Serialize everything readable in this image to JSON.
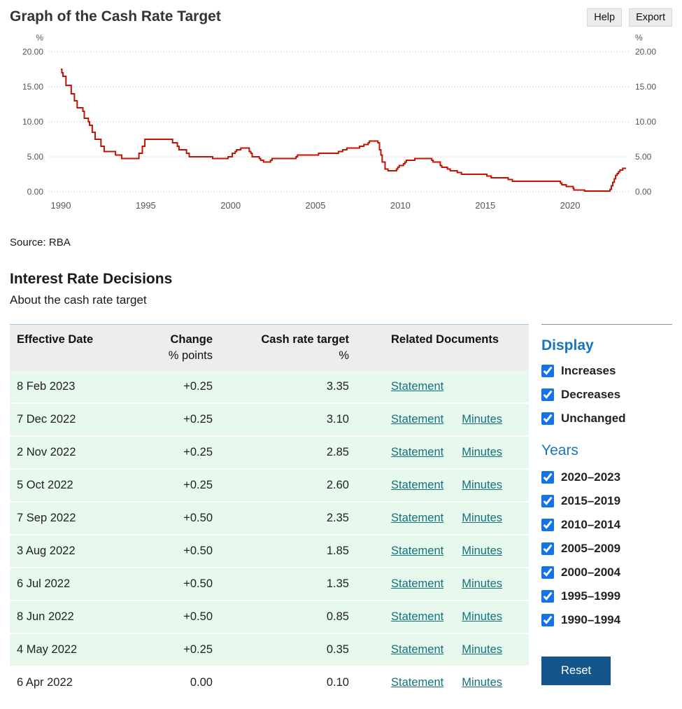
{
  "header": {
    "title": "Graph of the Cash Rate Target",
    "help_label": "Help",
    "export_label": "Export"
  },
  "chart_data": {
    "type": "line",
    "style": "step",
    "title": "Graph of the Cash Rate Target",
    "unit": "%",
    "line_color": "#c41200",
    "ylim": [
      0,
      20
    ],
    "yticks": [
      0,
      5,
      10,
      15,
      20
    ],
    "ytick_labels": [
      "0.00",
      "5.00",
      "10.00",
      "15.00",
      "20.00"
    ],
    "xticks": [
      1990,
      1995,
      2000,
      2005,
      2010,
      2015,
      2020
    ],
    "x_range": [
      1989.3,
      2023.5
    ],
    "x_end": 2023.3,
    "grid": true,
    "series": [
      {
        "name": "Cash Rate Target (%)",
        "points": [
          [
            1990.0,
            17.5
          ],
          [
            1990.06,
            17.0
          ],
          [
            1990.13,
            16.5
          ],
          [
            1990.3,
            15.2
          ],
          [
            1990.61,
            14.0
          ],
          [
            1990.8,
            13.0
          ],
          [
            1990.96,
            12.0
          ],
          [
            1991.3,
            11.5
          ],
          [
            1991.38,
            10.5
          ],
          [
            1991.62,
            10.0
          ],
          [
            1991.69,
            9.5
          ],
          [
            1991.85,
            8.5
          ],
          [
            1992.02,
            7.5
          ],
          [
            1992.36,
            6.5
          ],
          [
            1992.55,
            5.75
          ],
          [
            1993.22,
            5.25
          ],
          [
            1993.58,
            4.75
          ],
          [
            1994.6,
            5.5
          ],
          [
            1994.8,
            6.5
          ],
          [
            1994.95,
            7.5
          ],
          [
            1996.58,
            7.0
          ],
          [
            1996.86,
            6.5
          ],
          [
            1996.96,
            6.0
          ],
          [
            1997.4,
            5.5
          ],
          [
            1997.56,
            5.0
          ],
          [
            1998.94,
            4.75
          ],
          [
            1999.85,
            5.0
          ],
          [
            2000.1,
            5.5
          ],
          [
            2000.27,
            5.75
          ],
          [
            2000.35,
            6.0
          ],
          [
            2000.6,
            6.25
          ],
          [
            2001.1,
            5.75
          ],
          [
            2001.19,
            5.5
          ],
          [
            2001.27,
            5.0
          ],
          [
            2001.69,
            4.75
          ],
          [
            2001.77,
            4.5
          ],
          [
            2001.94,
            4.25
          ],
          [
            2002.35,
            4.5
          ],
          [
            2002.44,
            4.75
          ],
          [
            2003.85,
            5.0
          ],
          [
            2003.94,
            5.25
          ],
          [
            2005.18,
            5.5
          ],
          [
            2006.35,
            5.75
          ],
          [
            2006.6,
            6.0
          ],
          [
            2006.85,
            6.25
          ],
          [
            2007.6,
            6.5
          ],
          [
            2007.85,
            6.75
          ],
          [
            2008.1,
            7.0
          ],
          [
            2008.18,
            7.25
          ],
          [
            2008.68,
            7.0
          ],
          [
            2008.77,
            6.0
          ],
          [
            2008.85,
            5.25
          ],
          [
            2008.93,
            4.25
          ],
          [
            2009.1,
            3.25
          ],
          [
            2009.27,
            3.0
          ],
          [
            2009.77,
            3.25
          ],
          [
            2009.85,
            3.5
          ],
          [
            2009.93,
            3.75
          ],
          [
            2010.18,
            4.0
          ],
          [
            2010.27,
            4.25
          ],
          [
            2010.35,
            4.5
          ],
          [
            2010.85,
            4.75
          ],
          [
            2011.85,
            4.5
          ],
          [
            2011.93,
            4.25
          ],
          [
            2012.35,
            3.75
          ],
          [
            2012.44,
            3.5
          ],
          [
            2012.77,
            3.25
          ],
          [
            2012.94,
            3.0
          ],
          [
            2013.35,
            2.75
          ],
          [
            2013.6,
            2.5
          ],
          [
            2015.1,
            2.25
          ],
          [
            2015.35,
            2.0
          ],
          [
            2016.35,
            1.75
          ],
          [
            2016.6,
            1.5
          ],
          [
            2019.43,
            1.25
          ],
          [
            2019.51,
            1.0
          ],
          [
            2019.77,
            0.75
          ],
          [
            2020.18,
            0.5
          ],
          [
            2020.22,
            0.25
          ],
          [
            2020.85,
            0.1
          ],
          [
            2022.35,
            0.35
          ],
          [
            2022.43,
            0.85
          ],
          [
            2022.51,
            1.35
          ],
          [
            2022.6,
            1.85
          ],
          [
            2022.68,
            2.35
          ],
          [
            2022.77,
            2.6
          ],
          [
            2022.85,
            2.85
          ],
          [
            2022.93,
            3.1
          ],
          [
            2023.1,
            3.35
          ]
        ]
      }
    ]
  },
  "source": "Source: RBA",
  "decisions": {
    "title": "Interest Rate Decisions",
    "about_label": "About the cash rate target"
  },
  "table": {
    "headers": {
      "date": "Effective Date",
      "change": "Change",
      "change_unit": "% points",
      "target": "Cash rate target",
      "target_unit": "%",
      "documents": "Related Documents"
    },
    "rows": [
      {
        "date": "8 Feb 2023",
        "change": "+0.25",
        "target": "3.35",
        "links": [
          "Statement"
        ],
        "highlight": true
      },
      {
        "date": "7 Dec 2022",
        "change": "+0.25",
        "target": "3.10",
        "links": [
          "Statement",
          "Minutes"
        ],
        "highlight": true
      },
      {
        "date": "2 Nov 2022",
        "change": "+0.25",
        "target": "2.85",
        "links": [
          "Statement",
          "Minutes"
        ],
        "highlight": true
      },
      {
        "date": "5 Oct 2022",
        "change": "+0.25",
        "target": "2.60",
        "links": [
          "Statement",
          "Minutes"
        ],
        "highlight": true
      },
      {
        "date": "7 Sep 2022",
        "change": "+0.50",
        "target": "2.35",
        "links": [
          "Statement",
          "Minutes"
        ],
        "highlight": true
      },
      {
        "date": "3 Aug 2022",
        "change": "+0.50",
        "target": "1.85",
        "links": [
          "Statement",
          "Minutes"
        ],
        "highlight": true
      },
      {
        "date": "6 Jul 2022",
        "change": "+0.50",
        "target": "1.35",
        "links": [
          "Statement",
          "Minutes"
        ],
        "highlight": true
      },
      {
        "date": "8 Jun 2022",
        "change": "+0.50",
        "target": "0.85",
        "links": [
          "Statement",
          "Minutes"
        ],
        "highlight": true
      },
      {
        "date": "4 May 2022",
        "change": "+0.25",
        "target": "0.35",
        "links": [
          "Statement",
          "Minutes"
        ],
        "highlight": true
      },
      {
        "date": "6 Apr 2022",
        "change": "0.00",
        "target": "0.10",
        "links": [
          "Statement",
          "Minutes"
        ],
        "highlight": false
      }
    ]
  },
  "sidebar": {
    "display": {
      "title": "Display",
      "options": [
        {
          "label": "Increases",
          "checked": true
        },
        {
          "label": "Decreases",
          "checked": true
        },
        {
          "label": "Unchanged",
          "checked": true
        }
      ]
    },
    "years": {
      "title": "Years",
      "options": [
        {
          "label": "2020–2023",
          "checked": true
        },
        {
          "label": "2015–2019",
          "checked": true
        },
        {
          "label": "2010–2014",
          "checked": true
        },
        {
          "label": "2005–2009",
          "checked": true
        },
        {
          "label": "2000–2004",
          "checked": true
        },
        {
          "label": "1995–1999",
          "checked": true
        },
        {
          "label": "1990–1994",
          "checked": true
        }
      ]
    },
    "reset_label": "Reset"
  },
  "colors": {
    "line_red": "#c41200",
    "link_teal": "#15717d",
    "heading_blue": "#1975bd",
    "checkbox_blue": "#1473e6",
    "reset_button_blue": "#14568c",
    "increase_row_green": "#e7f8ec",
    "header_gray": "#ededed"
  }
}
